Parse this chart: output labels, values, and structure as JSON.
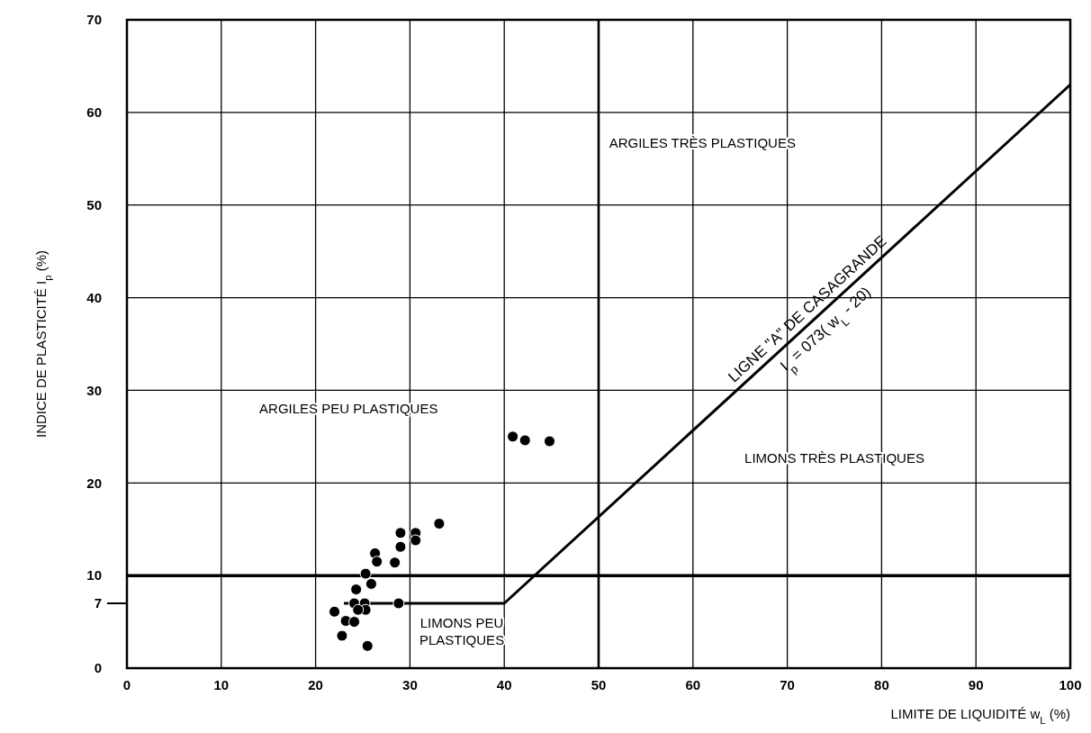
{
  "chart_data": {
    "type": "scatter",
    "xlabel": "LIMITE DE LIQUIDITÉ w$_{L}$ (%)",
    "ylabel": "INDICE DE PLASTICITÉ I$_{p}$ (%)",
    "xlim": [
      0,
      100
    ],
    "xticks": [
      0,
      10,
      20,
      30,
      40,
      50,
      60,
      70,
      80,
      90,
      100
    ],
    "ylim": [
      0,
      70
    ],
    "yticks": [
      0,
      {
        "value": 7,
        "label": "7"
      },
      10,
      20,
      30,
      40,
      50,
      60,
      70
    ],
    "grid": true,
    "legend": false,
    "marker": "circle",
    "ref_lines": [
      {
        "axis": "y",
        "value": 10
      },
      {
        "axis": "x",
        "value": 50
      }
    ],
    "series": [
      {
        "color": "#000000",
        "x": [
          33.1,
          29.0,
          30.6,
          30.6,
          29.0,
          26.3,
          26.5,
          28.4,
          25.3,
          25.9,
          24.3,
          28.8,
          24.1,
          25.2,
          25.3,
          24.5,
          22.0,
          23.2,
          24.1,
          22.8,
          25.5,
          40.9,
          42.2,
          44.8
        ],
        "values": [
          15.6,
          14.6,
          14.6,
          13.8,
          13.1,
          12.4,
          11.5,
          11.4,
          10.2,
          9.1,
          8.5,
          7.0,
          7.0,
          7.0,
          6.3,
          6.3,
          6.1,
          5.1,
          5.0,
          3.5,
          2.4,
          25.0,
          24.6,
          24.5
        ]
      },
      {
        "type": "line",
        "name": "LIGNE \"A\" DE CASAGRANDE\nI$_{p}$ = 073( w$_{L}$ - 20)",
        "color": "#000000",
        "marker": "none",
        "x": [
          23,
          40,
          100
        ],
        "values": [
          7,
          7,
          63
        ]
      }
    ],
    "annotations": [
      "ARGILES TRÈS PLASTIQUES",
      "ARGILES PEU PLASTIQUES",
      "LIMONS TRÈS PLASTIQUES",
      "LIMONS PEU\nPLASTIQUES"
    ]
  }
}
